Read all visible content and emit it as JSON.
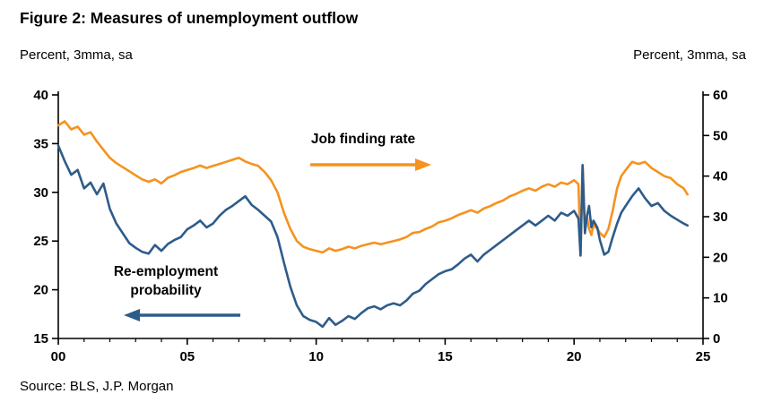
{
  "figure": {
    "title": "Figure 2: Measures of unemployment outflow",
    "left_axis_caption": "Percent, 3mma, sa",
    "right_axis_caption": "Percent, 3mma, sa",
    "source": "Source: BLS, J.P. Morgan"
  },
  "annotations": {
    "job_finding_rate": "Job finding rate",
    "reemployment_probability": "Re-employment\nprobability"
  },
  "colors": {
    "job_finding_rate": "#f6921e",
    "reemployment_probability": "#2e5c8a",
    "axis": "#000000"
  },
  "chart_data": {
    "type": "line",
    "title": "Figure 2: Measures of unemployment outflow",
    "x_range": [
      2000,
      2025
    ],
    "x_ticks": [
      {
        "v": 2000,
        "label": "00"
      },
      {
        "v": 2005,
        "label": "05"
      },
      {
        "v": 2010,
        "label": "10"
      },
      {
        "v": 2015,
        "label": "15"
      },
      {
        "v": 2020,
        "label": "20"
      },
      {
        "v": 2025,
        "label": "25"
      }
    ],
    "left_axis": {
      "label": "Percent, 3mma, sa",
      "range": [
        15,
        40
      ],
      "ticks": [
        15,
        20,
        25,
        30,
        35,
        40
      ]
    },
    "right_axis": {
      "label": "Percent, 3mma, sa",
      "range": [
        0,
        60
      ],
      "ticks": [
        0,
        10,
        20,
        30,
        40,
        50,
        60
      ]
    },
    "grid": false,
    "legend": "in-plot annotations with arrows",
    "series": [
      {
        "name": "Job finding rate",
        "axis": "right",
        "color": "#f6921e",
        "x": [
          2000.0,
          2000.25,
          2000.5,
          2000.75,
          2001.0,
          2001.25,
          2001.5,
          2001.75,
          2002.0,
          2002.25,
          2002.5,
          2002.75,
          2003.0,
          2003.25,
          2003.5,
          2003.75,
          2004.0,
          2004.25,
          2004.5,
          2004.75,
          2005.0,
          2005.25,
          2005.5,
          2005.75,
          2006.0,
          2006.25,
          2006.5,
          2006.75,
          2007.0,
          2007.25,
          2007.5,
          2007.75,
          2008.0,
          2008.25,
          2008.5,
          2008.75,
          2009.0,
          2009.25,
          2009.5,
          2009.75,
          2010.0,
          2010.25,
          2010.5,
          2010.75,
          2011.0,
          2011.25,
          2011.5,
          2011.75,
          2012.0,
          2012.25,
          2012.5,
          2012.75,
          2013.0,
          2013.25,
          2013.5,
          2013.75,
          2014.0,
          2014.25,
          2014.5,
          2014.75,
          2015.0,
          2015.25,
          2015.5,
          2015.75,
          2016.0,
          2016.25,
          2016.5,
          2016.75,
          2017.0,
          2017.25,
          2017.5,
          2017.75,
          2018.0,
          2018.25,
          2018.5,
          2018.75,
          2019.0,
          2019.25,
          2019.5,
          2019.75,
          2020.0,
          2020.17,
          2020.25,
          2020.33,
          2020.42,
          2020.5,
          2020.58,
          2020.67,
          2020.75,
          2020.9,
          2021.0,
          2021.17,
          2021.33,
          2021.5,
          2021.67,
          2021.83,
          2022.0,
          2022.25,
          2022.5,
          2022.75,
          2023.0,
          2023.25,
          2023.5,
          2023.75,
          2024.0,
          2024.25,
          2024.4
        ],
        "y": [
          52.5,
          53.5,
          51.5,
          52.2,
          50.2,
          50.8,
          48.5,
          46.5,
          44.5,
          43.2,
          42.2,
          41.2,
          40.2,
          39.2,
          38.6,
          39.2,
          38.2,
          39.6,
          40.2,
          41.0,
          41.5,
          42.0,
          42.6,
          42.0,
          42.5,
          43.0,
          43.5,
          44.0,
          44.5,
          43.6,
          43.0,
          42.5,
          41.0,
          39.0,
          36.0,
          31.0,
          27.0,
          24.0,
          22.6,
          22.0,
          21.6,
          21.2,
          22.2,
          21.6,
          22.0,
          22.6,
          22.2,
          22.8,
          23.2,
          23.6,
          23.2,
          23.6,
          24.0,
          24.4,
          25.0,
          26.0,
          26.2,
          27.0,
          27.6,
          28.6,
          29.0,
          29.6,
          30.4,
          31.0,
          31.6,
          31.0,
          32.0,
          32.6,
          33.4,
          34.0,
          35.0,
          35.6,
          36.4,
          37.0,
          36.4,
          37.4,
          38.0,
          37.4,
          38.4,
          38.0,
          39.0,
          38.0,
          20.5,
          42.5,
          27.5,
          30.0,
          27.0,
          25.5,
          28.0,
          27.0,
          26.0,
          25.0,
          27.0,
          31.5,
          37.0,
          40.0,
          41.5,
          43.5,
          43.0,
          43.5,
          42.0,
          41.0,
          40.0,
          39.5,
          38.0,
          37.0,
          35.5
        ]
      },
      {
        "name": "Re-employment probability",
        "axis": "left",
        "color": "#2e5c8a",
        "x": [
          2000.0,
          2000.25,
          2000.5,
          2000.75,
          2001.0,
          2001.25,
          2001.5,
          2001.75,
          2002.0,
          2002.25,
          2002.5,
          2002.75,
          2003.0,
          2003.25,
          2003.5,
          2003.75,
          2004.0,
          2004.25,
          2004.5,
          2004.75,
          2005.0,
          2005.25,
          2005.5,
          2005.75,
          2006.0,
          2006.25,
          2006.5,
          2006.75,
          2007.0,
          2007.25,
          2007.5,
          2007.75,
          2008.0,
          2008.25,
          2008.5,
          2008.75,
          2009.0,
          2009.25,
          2009.5,
          2009.75,
          2010.0,
          2010.25,
          2010.5,
          2010.75,
          2011.0,
          2011.25,
          2011.5,
          2011.75,
          2012.0,
          2012.25,
          2012.5,
          2012.75,
          2013.0,
          2013.25,
          2013.5,
          2013.75,
          2014.0,
          2014.25,
          2014.5,
          2014.75,
          2015.0,
          2015.25,
          2015.5,
          2015.75,
          2016.0,
          2016.25,
          2016.5,
          2016.75,
          2017.0,
          2017.25,
          2017.5,
          2017.75,
          2018.0,
          2018.25,
          2018.5,
          2018.75,
          2019.0,
          2019.25,
          2019.5,
          2019.75,
          2020.0,
          2020.17,
          2020.25,
          2020.33,
          2020.42,
          2020.5,
          2020.58,
          2020.67,
          2020.75,
          2020.9,
          2021.0,
          2021.17,
          2021.33,
          2021.5,
          2021.67,
          2021.83,
          2022.0,
          2022.25,
          2022.5,
          2022.75,
          2023.0,
          2023.25,
          2023.5,
          2023.75,
          2024.0,
          2024.25,
          2024.4
        ],
        "y": [
          34.8,
          33.2,
          31.8,
          32.3,
          30.4,
          31.0,
          29.8,
          30.9,
          28.3,
          26.8,
          25.8,
          24.8,
          24.3,
          23.9,
          23.7,
          24.6,
          24.0,
          24.7,
          25.1,
          25.4,
          26.2,
          26.6,
          27.1,
          26.4,
          26.8,
          27.6,
          28.2,
          28.6,
          29.1,
          29.6,
          28.7,
          28.2,
          27.6,
          27.0,
          25.4,
          22.8,
          20.3,
          18.4,
          17.3,
          16.9,
          16.7,
          16.2,
          17.1,
          16.4,
          16.8,
          17.3,
          17.0,
          17.6,
          18.1,
          18.3,
          18.0,
          18.4,
          18.6,
          18.4,
          18.9,
          19.6,
          19.9,
          20.6,
          21.1,
          21.6,
          21.9,
          22.1,
          22.6,
          23.2,
          23.6,
          22.9,
          23.6,
          24.1,
          24.6,
          25.1,
          25.6,
          26.1,
          26.6,
          27.1,
          26.6,
          27.1,
          27.6,
          27.1,
          27.9,
          27.6,
          28.1,
          27.3,
          23.5,
          32.8,
          25.8,
          27.6,
          28.6,
          26.4,
          27.1,
          26.4,
          25.1,
          23.6,
          23.9,
          25.4,
          26.8,
          27.9,
          28.6,
          29.6,
          30.4,
          29.4,
          28.6,
          28.9,
          28.1,
          27.6,
          27.2,
          26.8,
          26.6
        ]
      }
    ]
  }
}
